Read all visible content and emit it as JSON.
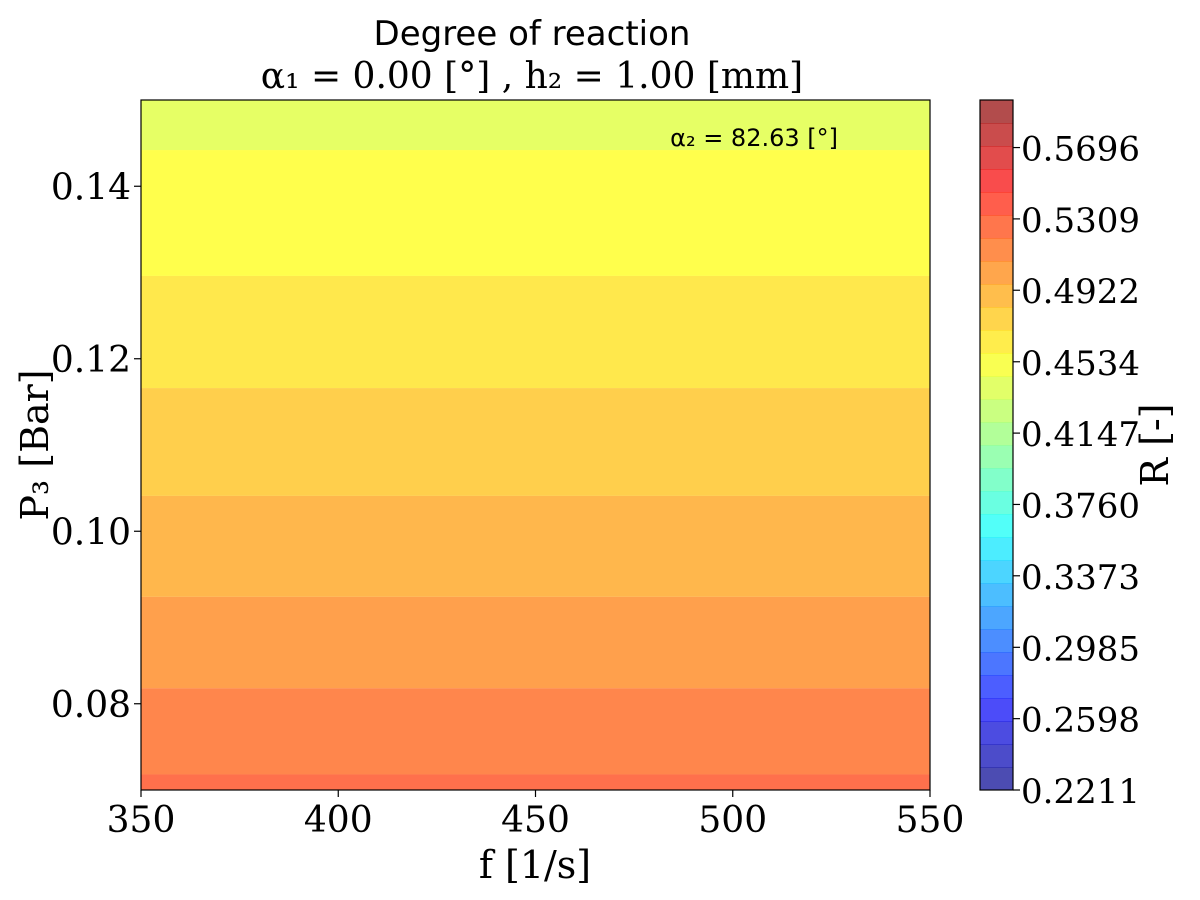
{
  "chart_data": {
    "type": "heatmap",
    "title": "Degree of reaction",
    "subtitle": "α₁ = 0.00 [°] , h₂ = 1.00 [mm]",
    "annotation": "α₂ = 82.63 [°]",
    "xlabel": "f [1/s]",
    "ylabel": "P₃ [Bar]",
    "xlim": [
      350,
      550
    ],
    "ylim": [
      0.07,
      0.15
    ],
    "x_ticks": [
      350,
      400,
      450,
      500,
      550
    ],
    "x_tick_labels": [
      "350",
      "400",
      "450",
      "500",
      "550"
    ],
    "y_ticks": [
      0.08,
      0.1,
      0.12,
      0.14
    ],
    "y_tick_labels": [
      "0.08",
      "0.10",
      "0.12",
      "0.14"
    ],
    "grid": false,
    "colormap": "jet",
    "colorbar": {
      "label": "R [-]",
      "min": 0.2211,
      "max": 0.5954,
      "levels": 30,
      "ticks": [
        0.2211,
        0.2598,
        0.2985,
        0.3373,
        0.376,
        0.4147,
        0.4534,
        0.4922,
        0.5309,
        0.5696
      ],
      "tick_labels": [
        "0.2211",
        "0.2598",
        "0.2985",
        "0.3373",
        "0.3760",
        "0.4147",
        "0.4534",
        "0.4922",
        "0.5309",
        "0.5696"
      ]
    },
    "bands": [
      {
        "y_from": 0.07,
        "y_to": 0.0718,
        "value": 0.53
      },
      {
        "y_from": 0.0718,
        "y_to": 0.0818,
        "value": 0.518
      },
      {
        "y_from": 0.0818,
        "y_to": 0.0924,
        "value": 0.505
      },
      {
        "y_from": 0.0924,
        "y_to": 0.1041,
        "value": 0.493
      },
      {
        "y_from": 0.1041,
        "y_to": 0.1166,
        "value": 0.48
      },
      {
        "y_from": 0.1166,
        "y_to": 0.1296,
        "value": 0.467
      },
      {
        "y_from": 0.1296,
        "y_to": 0.1442,
        "value": 0.455
      },
      {
        "y_from": 0.1442,
        "y_to": 0.15,
        "value": 0.442
      }
    ]
  }
}
